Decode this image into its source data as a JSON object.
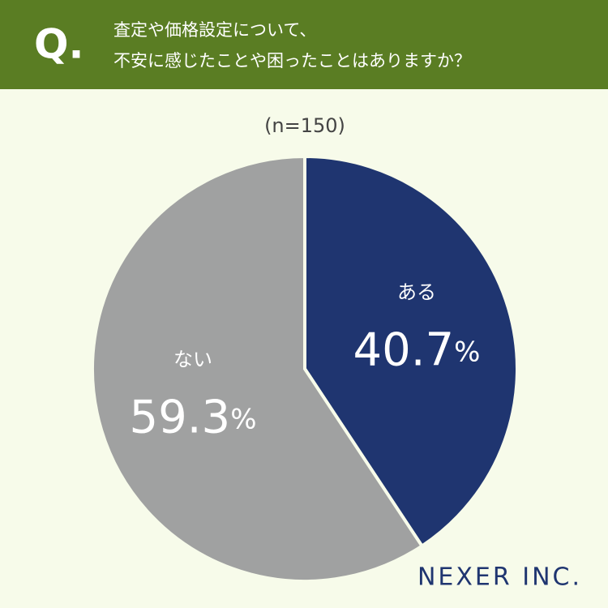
{
  "chart_data": {
    "type": "pie",
    "title_prefix": "Q.",
    "title": [
      "査定や価格設定について、",
      "不安に感じたことや困ったことはありますか？"
    ],
    "subtitle": "(n=150)",
    "categories": [
      "ある",
      "ない"
    ],
    "values": [
      40.7,
      59.3
    ],
    "value_labels": [
      "40.7%",
      "59.3%"
    ],
    "colors": [
      "#1f3570",
      "#a0a1a1"
    ],
    "brand": "NEXER INC."
  }
}
